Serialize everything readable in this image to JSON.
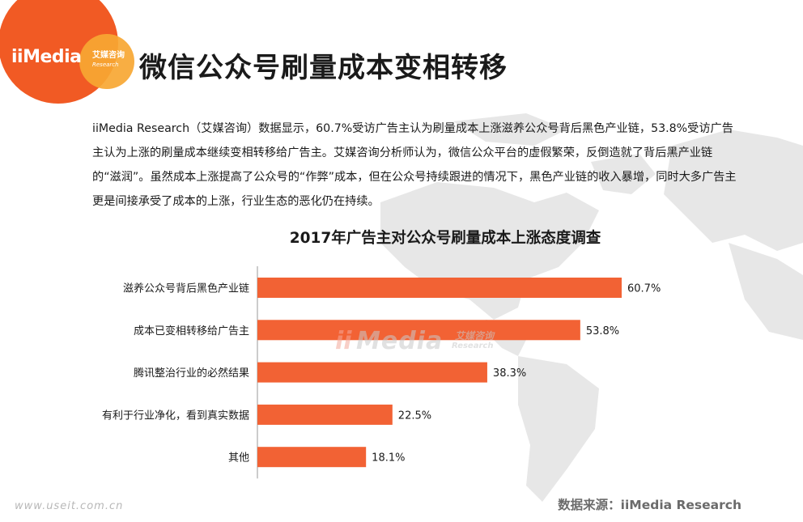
{
  "header": {
    "logo_text": "iiMedia",
    "logo_cn": "艾媒咨询",
    "logo_en": "Research",
    "title": "微信公众号刷量成本变相转移"
  },
  "intro": {
    "text": "iiMedia Research（艾媒咨询）数据显示，60.7%受访广告主认为刷量成本上涨滋养公众号背后黑色产业链，53.8%受访广告主认为上涨的刷量成本继续变相转移给广告主。艾媒咨询分析师认为，微信公众平台的虚假繁荣，反倒造就了背后黑产业链的“滋润”。虽然成本上涨提高了公众号的“作弊”成本，但在公众号持续跟进的情况下，黑色产业链的收入暴增，同时大多广告主更是间接承受了成本的上涨，行业生态的恶化仍在持续。"
  },
  "chart_data": {
    "type": "bar",
    "orientation": "horizontal",
    "title": "2017年广告主对公众号刷量成本上涨态度调查",
    "categories": [
      "滋养公众号背后黑色产业链",
      "成本已变相转移给广告主",
      "腾讯整治行业的必然结果",
      "有利于行业净化，看到真实数据",
      "其他"
    ],
    "values": [
      60.7,
      53.8,
      38.3,
      22.5,
      18.1
    ],
    "value_labels": [
      "60.7%",
      "53.8%",
      "38.3%",
      "22.5%",
      "18.1%"
    ],
    "unit": "%",
    "xlim": [
      0,
      60.7
    ],
    "bar_color": "#f26234",
    "grid": false
  },
  "watermark": {
    "ii": "ii",
    "main": "Media",
    "cn": "艾媒咨询",
    "en": "Research"
  },
  "footer": {
    "site": "www.useit.com.cn",
    "source": "数据来源：iiMedia Research"
  },
  "colors": {
    "accent": "#f15a24",
    "accent_light": "#f7a733",
    "bar": "#f26234",
    "map": "#e6e6e6"
  }
}
